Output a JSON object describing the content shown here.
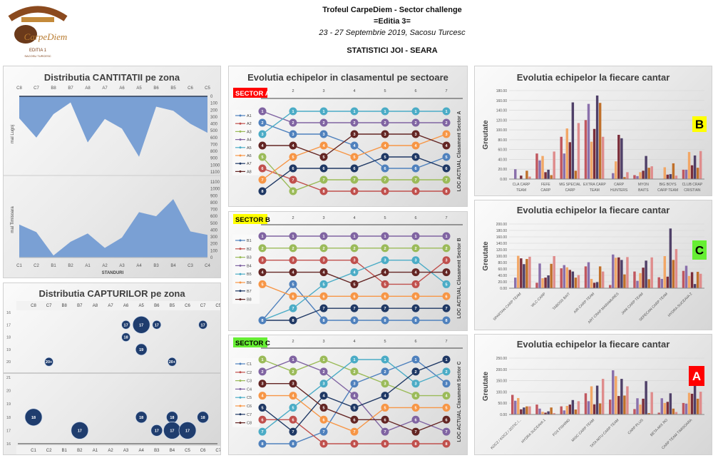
{
  "header": {
    "title": "Trofeul CarpeDiem - Sector challenge",
    "edition": "=Editia 3=",
    "dates": "23 - 27 Septembrie 2019, Sacosu Turcesc",
    "subtitle": "STATISTICI JOI - SEARA"
  },
  "logo": {
    "text_top": "Trofeul CarpeDiem",
    "text_mid": "Sector Challenge",
    "text_brand": "CarpeDiem",
    "text_edition": "EDITIA 1",
    "text_place": "SACOSU TURCESC"
  },
  "colors": {
    "area_fill": "#7aa0d4",
    "bubble": "#1f3d6e",
    "sector_series": [
      "#4f81bd",
      "#c0504d",
      "#9bbb59",
      "#8064a2",
      "#4bacc6",
      "#f79646",
      "#1f3864",
      "#632523"
    ],
    "bar_series": [
      "#c0575f",
      "#8a70ab",
      "#f2a766",
      "#7a2d3a",
      "#4f4068",
      "#c0702a",
      "#df8c8c"
    ]
  },
  "chart_data": [
    {
      "type": "area",
      "title": "Distributia CANTITATII pe zona",
      "xlabel": "STANDURI",
      "panels": [
        {
          "ylabel": "mal  Lugoj",
          "categories": [
            "C8",
            "C7",
            "B8",
            "B7",
            "A8",
            "A7",
            "A6",
            "A5",
            "B6",
            "B5",
            "C6",
            "C5"
          ],
          "values": [
            320,
            600,
            260,
            90,
            670,
            330,
            470,
            880,
            150,
            210,
            400,
            530
          ],
          "ylim": [
            0,
            1100
          ],
          "yticks": [
            "0",
            "100",
            "200",
            "300",
            "400",
            "500",
            "600",
            "700",
            "800",
            "900",
            "1000",
            "1100"
          ],
          "reversed": true
        },
        {
          "ylabel": "mal  Timisoara",
          "categories": [
            "C1",
            "C2",
            "B1",
            "B2",
            "A1",
            "A2",
            "A3",
            "A4",
            "B3",
            "B4",
            "C3",
            "C4"
          ],
          "values": [
            480,
            370,
            30,
            230,
            350,
            140,
            290,
            660,
            600,
            850,
            380,
            330
          ],
          "ylim": [
            0,
            1100
          ],
          "yticks": [
            "0",
            "100",
            "200",
            "300",
            "400",
            "500",
            "600",
            "700",
            "800",
            "900",
            "1000",
            "1100"
          ],
          "reversed": false
        }
      ]
    },
    {
      "type": "scatter",
      "title": "Distributia CAPTURILOR pe zona",
      "panels": [
        {
          "categories": [
            "C8",
            "C7",
            "B8",
            "B7",
            "A8",
            "A7",
            "A6",
            "A5",
            "B6",
            "B5",
            "C6",
            "C7",
            "C5"
          ],
          "yticks": [
            "16",
            "17",
            "18",
            "19",
            "20"
          ],
          "points": [
            {
              "x": "A6",
              "y": 17,
              "label": "17",
              "size": 1
            },
            {
              "x": "A5",
              "y": 17,
              "label": "17",
              "size": 3
            },
            {
              "x": "B6",
              "y": 17,
              "label": "17",
              "size": 1
            },
            {
              "x": "C7",
              "y": 17,
              "label": "17",
              "size": 1,
              "col": 11
            },
            {
              "x": "A6",
              "y": 18,
              "label": "18",
              "size": 1
            },
            {
              "x": "A5",
              "y": 19,
              "label": "19",
              "size": 2
            },
            {
              "x": "C7",
              "y": 20,
              "label": "20+",
              "size": 1,
              "col": 1
            },
            {
              "x": "B5",
              "y": 20,
              "label": "20+",
              "size": 1
            }
          ]
        },
        {
          "categories": [
            "C1",
            "C2",
            "B1",
            "B2",
            "A1",
            "A2",
            "A3",
            "A4",
            "B3",
            "B4",
            "C5",
            "C6",
            "C7"
          ],
          "yticks": [
            "21",
            "20",
            "19",
            "18",
            "17",
            "16"
          ],
          "points": [
            {
              "x": "C1",
              "y": 18,
              "label": "18",
              "size": 3
            },
            {
              "x": "B2",
              "y": 17,
              "label": "17",
              "size": 3
            },
            {
              "x": "A4",
              "y": 18,
              "label": "18",
              "size": 2
            },
            {
              "x": "B3",
              "y": 17,
              "label": "17",
              "size": 2
            },
            {
              "x": "B4",
              "y": 18,
              "label": "18",
              "size": 2
            },
            {
              "x": "B4",
              "y": 17,
              "label": "17",
              "size": 3
            },
            {
              "x": "C5",
              "y": 17,
              "label": "17",
              "size": 3
            },
            {
              "x": "C6",
              "y": 18,
              "label": "18",
              "size": 2
            }
          ]
        }
      ]
    },
    {
      "type": "line",
      "title": "Evolutia echipelor in clasamentul pe sectoare",
      "sectors": [
        {
          "label": "SECTOR A",
          "badge_color": "#ff0000",
          "badge_text_color": "#ffffff",
          "axis_title": "LOC ACTUAL Clasament Sector A",
          "columns": [
            "",
            "2",
            "3",
            "4",
            "5",
            "6",
            "7"
          ],
          "series": [
            {
              "name": "A1",
              "values": [
                2,
                3,
                3,
                4,
                6,
                6,
                5
              ]
            },
            {
              "name": "A2",
              "values": [
                6,
                7,
                8,
                8,
                8,
                8,
                8
              ]
            },
            {
              "name": "A3",
              "values": [
                5,
                8,
                7,
                7,
                7,
                7,
                7
              ]
            },
            {
              "name": "A4",
              "values": [
                1,
                2,
                2,
                2,
                2,
                2,
                2
              ]
            },
            {
              "name": "A5",
              "values": [
                3,
                1,
                1,
                1,
                1,
                1,
                1
              ]
            },
            {
              "name": "A6",
              "values": [
                7,
                5,
                4,
                5,
                4,
                4,
                3
              ]
            },
            {
              "name": "A7",
              "values": [
                8,
                6,
                6,
                6,
                5,
                5,
                6
              ]
            },
            {
              "name": "A8",
              "values": [
                4,
                4,
                5,
                3,
                3,
                3,
                4
              ]
            }
          ]
        },
        {
          "label": "SECTOR B",
          "badge_color": "#ffff00",
          "badge_text_color": "#000000",
          "axis_title": "LOC ACTUAL Clasament Sector B",
          "columns": [
            "",
            "2",
            "3",
            "4",
            "5",
            "6",
            "7"
          ],
          "series": [
            {
              "name": "B1",
              "values": [
                8,
                5,
                8,
                8,
                8,
                8,
                8
              ]
            },
            {
              "name": "B2",
              "values": [
                3,
                3,
                3,
                3,
                5,
                5,
                3
              ]
            },
            {
              "name": "B3",
              "values": [
                2,
                2,
                2,
                2,
                2,
                2,
                2
              ]
            },
            {
              "name": "B4",
              "values": [
                1,
                1,
                1,
                1,
                1,
                1,
                1
              ]
            },
            {
              "name": "B5",
              "values": [
                8,
                7,
                5,
                4,
                3,
                3,
                5
              ]
            },
            {
              "name": "B6",
              "values": [
                5,
                6,
                6,
                6,
                6,
                6,
                6
              ]
            },
            {
              "name": "B7",
              "values": [
                8,
                8,
                7,
                7,
                7,
                7,
                7
              ]
            },
            {
              "name": "B8",
              "values": [
                4,
                4,
                4,
                5,
                4,
                4,
                4
              ]
            }
          ]
        },
        {
          "label": "SECTOR C",
          "badge_color": "#66ee33",
          "badge_text_color": "#000000",
          "axis_title": "LOC ACTUAL Clasament Sector C",
          "columns": [
            "",
            "2",
            "3",
            "4",
            "5",
            "6",
            "7"
          ],
          "series": [
            {
              "name": "C1",
              "values": [
                8,
                8,
                7,
                3,
                2,
                1,
                3
              ]
            },
            {
              "name": "C2",
              "values": [
                6,
                6,
                8,
                8,
                8,
                8,
                8
              ]
            },
            {
              "name": "C3",
              "values": [
                1,
                2,
                1,
                2,
                3,
                4,
                4
              ]
            },
            {
              "name": "C4",
              "values": [
                2,
                1,
                2,
                4,
                7,
                6,
                7
              ]
            },
            {
              "name": "C5",
              "values": [
                7,
                5,
                3,
                1,
                1,
                3,
                2
              ]
            },
            {
              "name": "C6",
              "values": [
                4,
                4,
                6,
                7,
                5,
                5,
                5
              ]
            },
            {
              "name": "C7",
              "values": [
                5,
                7,
                4,
                5,
                4,
                2,
                1
              ]
            },
            {
              "name": "C8",
              "values": [
                3,
                3,
                5,
                6,
                6,
                7,
                6
              ]
            }
          ]
        }
      ]
    },
    {
      "type": "bar",
      "title": "Evolutia echipelor la fiecare cantar",
      "ylabel": "Greutate",
      "badge": "B",
      "badge_color": "#ffff00",
      "badge_text_color": "#000000",
      "ylim": [
        0,
        180
      ],
      "yticks": [
        "0.00",
        "20.00",
        "40.00",
        "60.00",
        "80.00",
        "100.00",
        "120.00",
        "140.00",
        "160.00",
        "180.00"
      ],
      "rotated_labels": false,
      "categories": [
        "CLA CARP TEAM",
        "FEFE CARP",
        "MG SPECIAL CARP",
        "EXTRA CARP TEAM",
        "CARP HUNTERS",
        "MYON BAITS",
        "BIG BOYS CARP TEAM",
        "CLUB CRAP CRISTIAN"
      ],
      "series": [
        {
          "values": [
            0,
            52,
            86,
            120,
            0,
            8,
            0,
            19
          ]
        },
        {
          "values": [
            20,
            38,
            52,
            153,
            12,
            6,
            0,
            19
          ]
        },
        {
          "values": [
            0,
            47,
            103,
            76,
            36,
            14,
            24,
            55
          ]
        },
        {
          "values": [
            7,
            14,
            75,
            102,
            90,
            17,
            9,
            28
          ]
        },
        {
          "values": [
            0,
            19,
            156,
            170,
            83,
            47,
            10,
            48
          ]
        },
        {
          "values": [
            17,
            8,
            17,
            155,
            4,
            23,
            32,
            23
          ]
        },
        {
          "values": [
            5,
            56,
            114,
            86,
            14,
            26,
            7,
            57
          ]
        }
      ]
    },
    {
      "type": "bar",
      "title": "Evolutia echipelor la fiecare cantar",
      "ylabel": "Greutate",
      "badge": "C",
      "badge_color": "#66ee33",
      "badge_text_color": "#000000",
      "ylim": [
        0,
        200
      ],
      "yticks": [
        "0.00",
        "20.00",
        "40.00",
        "60.00",
        "80.00",
        "100.00",
        "120.00",
        "140.00",
        "160.00",
        "180.00",
        "200.00"
      ],
      "rotated_labels": true,
      "categories": [
        "SPARTAN CARP TEAM",
        "WLC CARP",
        "TABOSS BAIT",
        "AIR CARP TEAM",
        "ART CRAP MARAMURES",
        "JANI CARP TEAM",
        "SEPECAN CARP TEAM",
        "HYDRA SUCEAVA 2"
      ],
      "series": [
        {
          "values": [
            0,
            17,
            62,
            68,
            10,
            52,
            34,
            54
          ]
        },
        {
          "values": [
            33,
            77,
            72,
            81,
            105,
            23,
            29,
            70
          ]
        },
        {
          "values": [
            101,
            31,
            65,
            29,
            95,
            47,
            100,
            38
          ]
        },
        {
          "values": [
            93,
            33,
            57,
            17,
            96,
            64,
            36,
            50
          ]
        },
        {
          "values": [
            75,
            40,
            52,
            19,
            88,
            86,
            186,
            13
          ]
        },
        {
          "values": [
            91,
            76,
            33,
            68,
            43,
            28,
            88,
            51
          ]
        },
        {
          "values": [
            98,
            100,
            41,
            52,
            97,
            96,
            122,
            45
          ]
        }
      ]
    },
    {
      "type": "bar",
      "title": "Evolutia echipelor la fiecare cantar",
      "ylabel": "Greutate",
      "badge": "A",
      "badge_color": "#ff0000",
      "badge_text_color": "#ffffff",
      "ylim": [
        0,
        250
      ],
      "yticks": [
        "0.00",
        "50.00",
        "100.00",
        "150.00",
        "200.00",
        "250.00"
      ],
      "rotated_labels": true,
      "categories": [
        "KOCZ / KOCZ / ZOTIC /...",
        "HYDRA SUCEAVA 1",
        "FOX FISHING",
        "MISC CARP TEAM",
        "TATA NITU CARP TEAM",
        "CARP PLUS",
        "BETA-MIX RO",
        "CARP TEAM TIMISOARA"
      ],
      "series": [
        {
          "values": [
            87,
            44,
            36,
            94,
            66,
            24,
            8,
            51
          ]
        },
        {
          "values": [
            61,
            26,
            18,
            59,
            196,
            72,
            72,
            48
          ]
        },
        {
          "values": [
            73,
            12,
            38,
            125,
            170,
            44,
            51,
            96
          ]
        },
        {
          "values": [
            23,
            8,
            44,
            45,
            82,
            70,
            56,
            92
          ]
        },
        {
          "values": [
            31,
            14,
            64,
            128,
            158,
            148,
            94,
            128
          ]
        },
        {
          "values": [
            36,
            31,
            22,
            49,
            84,
            6,
            26,
            70
          ]
        },
        {
          "values": [
            36,
            6,
            59,
            158,
            125,
            99,
            11,
            101
          ]
        }
      ]
    }
  ]
}
